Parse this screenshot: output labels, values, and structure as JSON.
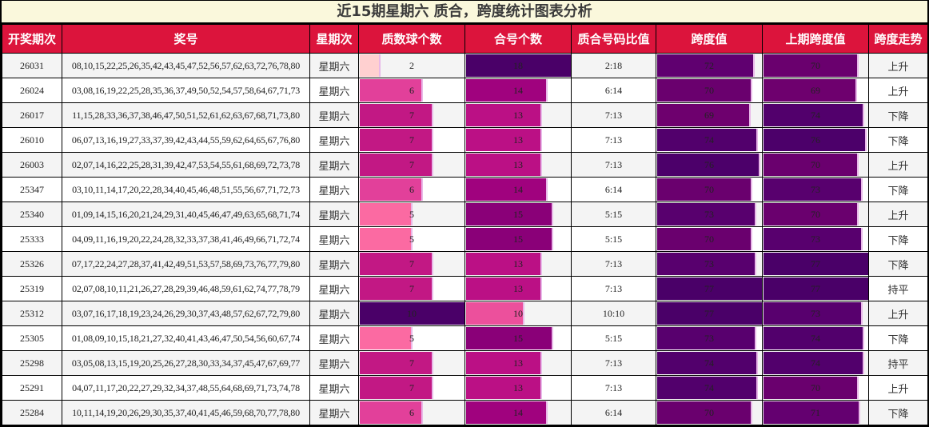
{
  "title": "近15期星期六 质合，跨度统计图表分析",
  "headers": [
    "开奖期次",
    "奖号",
    "星期次",
    "质数球个数",
    "合号个数",
    "质合号码比值",
    "跨度值",
    "上期跨度值",
    "跨度走势"
  ],
  "rows": [
    {
      "period": "26031",
      "numbers": "08,10,15,22,25,26,35,42,43,45,47,52,56,57,62,63,72,76,78,80",
      "weekday": "星期六",
      "prime": "2",
      "composite": "18",
      "ratio": "2:18",
      "span": "72",
      "prev_span": "70",
      "trend": "上升"
    },
    {
      "period": "26024",
      "numbers": "03,08,16,19,22,25,28,35,36,37,49,50,52,54,57,58,64,67,71,73",
      "weekday": "星期六",
      "prime": "6",
      "composite": "14",
      "ratio": "6:14",
      "span": "70",
      "prev_span": "69",
      "trend": "上升"
    },
    {
      "period": "26017",
      "numbers": "11,15,28,33,36,37,38,46,47,50,51,52,61,62,63,67,68,71,73,80",
      "weekday": "星期六",
      "prime": "7",
      "composite": "13",
      "ratio": "7:13",
      "span": "69",
      "prev_span": "74",
      "trend": "下降"
    },
    {
      "period": "26010",
      "numbers": "06,07,13,16,19,27,33,37,39,42,43,44,55,59,62,64,65,67,76,80",
      "weekday": "星期六",
      "prime": "7",
      "composite": "13",
      "ratio": "7:13",
      "span": "74",
      "prev_span": "76",
      "trend": "下降"
    },
    {
      "period": "26003",
      "numbers": "02,07,14,16,22,25,28,31,39,42,47,53,54,55,61,68,69,72,73,78",
      "weekday": "星期六",
      "prime": "7",
      "composite": "13",
      "ratio": "7:13",
      "span": "76",
      "prev_span": "70",
      "trend": "上升"
    },
    {
      "period": "25347",
      "numbers": "03,10,11,14,17,20,22,28,34,40,45,46,48,51,55,56,67,71,72,73",
      "weekday": "星期六",
      "prime": "6",
      "composite": "14",
      "ratio": "6:14",
      "span": "70",
      "prev_span": "73",
      "trend": "下降"
    },
    {
      "period": "25340",
      "numbers": "01,09,14,15,16,20,21,24,29,31,40,45,46,47,49,63,65,68,71,74",
      "weekday": "星期六",
      "prime": "5",
      "composite": "15",
      "ratio": "5:15",
      "span": "73",
      "prev_span": "70",
      "trend": "上升"
    },
    {
      "period": "25333",
      "numbers": "04,09,11,16,19,20,22,24,28,32,33,37,38,41,46,49,66,71,72,74",
      "weekday": "星期六",
      "prime": "5",
      "composite": "15",
      "ratio": "5:15",
      "span": "70",
      "prev_span": "73",
      "trend": "下降"
    },
    {
      "period": "25326",
      "numbers": "07,17,22,24,27,28,37,41,42,49,51,53,57,58,69,73,76,77,79,80",
      "weekday": "星期六",
      "prime": "7",
      "composite": "13",
      "ratio": "7:13",
      "span": "73",
      "prev_span": "77",
      "trend": "下降"
    },
    {
      "period": "25319",
      "numbers": "02,07,08,10,11,21,26,27,28,29,39,46,48,59,61,62,74,77,78,79",
      "weekday": "星期六",
      "prime": "7",
      "composite": "13",
      "ratio": "7:13",
      "span": "77",
      "prev_span": "77",
      "trend": "持平"
    },
    {
      "period": "25312",
      "numbers": "03,07,16,17,18,19,23,24,26,29,30,37,43,48,57,62,67,72,79,80",
      "weekday": "星期六",
      "prime": "10",
      "composite": "10",
      "ratio": "10:10",
      "span": "77",
      "prev_span": "73",
      "trend": "上升"
    },
    {
      "period": "25305",
      "numbers": "01,08,09,10,15,18,21,27,32,40,41,43,46,47,50,54,56,60,67,74",
      "weekday": "星期六",
      "prime": "5",
      "composite": "15",
      "ratio": "5:15",
      "span": "73",
      "prev_span": "74",
      "trend": "下降"
    },
    {
      "period": "25298",
      "numbers": "03,05,08,13,15,19,20,25,26,27,28,30,33,34,37,45,47,67,69,77",
      "weekday": "星期六",
      "prime": "7",
      "composite": "13",
      "ratio": "7:13",
      "span": "74",
      "prev_span": "74",
      "trend": "持平"
    },
    {
      "period": "25291",
      "numbers": "04,07,11,17,20,22,27,29,32,34,37,48,55,64,68,69,71,73,74,78",
      "weekday": "星期六",
      "prime": "7",
      "composite": "13",
      "ratio": "7:13",
      "span": "74",
      "prev_span": "70",
      "trend": "上升"
    },
    {
      "period": "25284",
      "numbers": "10,11,14,19,20,26,29,30,35,37,40,41,45,46,59,68,70,77,78,80",
      "weekday": "星期六",
      "prime": "6",
      "composite": "14",
      "ratio": "6:14",
      "span": "70",
      "prev_span": "71",
      "trend": "下降"
    }
  ],
  "colors": {
    "header_bg": "#dc143c",
    "title_bg": "#faf8dc",
    "prime_bars": {
      "2": "#ffd0d0",
      "5": "#fb6aa2",
      "6": "#e2409a",
      "7": "#c21884",
      "10": "#4a0068"
    },
    "composite_bars": {
      "10": "#ec509c",
      "13": "#bb1085",
      "14": "#a0027e",
      "15": "#8a0078",
      "18": "#4a0068"
    },
    "span_bars": {
      "69": "#6e006e",
      "70": "#6a006e",
      "71": "#640070",
      "72": "#600070",
      "73": "#58006e",
      "74": "#52006c",
      "76": "#4c006a",
      "77": "#4a0068"
    }
  },
  "bar_max": {
    "prime": 10,
    "composite": 18,
    "span": 77
  }
}
